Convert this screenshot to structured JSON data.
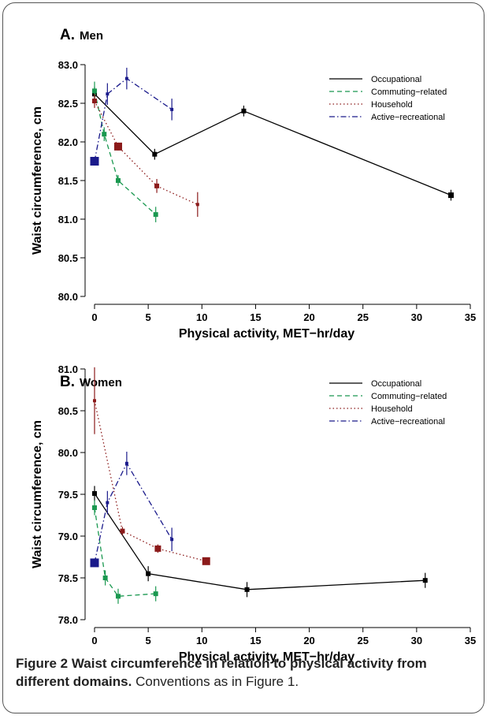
{
  "caption": {
    "title": "Figure 2 Waist circumference in relation to physical activity from different domains.",
    "text": "Conventions as in Figure 1."
  },
  "chart_data": [
    {
      "type": "line",
      "panel_letter": "A.",
      "title": "Men",
      "xlabel": "Physical activity, MET−hr/day",
      "ylabel": "Waist circumference, cm",
      "xlim": [
        0,
        35
      ],
      "ylim": [
        80.0,
        83.0
      ],
      "xticks": [
        0,
        5,
        10,
        15,
        20,
        25,
        30,
        35
      ],
      "yticks": [
        "80.0",
        "80.5",
        "81.0",
        "81.5",
        "82.0",
        "82.5",
        "83.0"
      ],
      "grid": false,
      "legend_position": "top-right",
      "series": [
        {
          "name": "Occupational",
          "color": "#000000",
          "dash": "solid",
          "x": [
            0,
            5.6,
            13.9,
            33.2
          ],
          "y": [
            82.62,
            81.84,
            82.4,
            81.31
          ],
          "err": [
            0.09,
            0.07,
            0.07,
            0.07
          ],
          "size": [
            6,
            6,
            6,
            7
          ]
        },
        {
          "name": "Commuting−related",
          "color": "#1a9850",
          "dash": "dashed",
          "x": [
            0,
            0.9,
            2.2,
            5.7
          ],
          "y": [
            82.66,
            82.1,
            81.5,
            81.06
          ],
          "err": [
            0.12,
            0.09,
            0.07,
            0.1
          ],
          "size": [
            6,
            6,
            6,
            6
          ]
        },
        {
          "name": "Household",
          "color": "#8b1a1a",
          "dash": "dotted",
          "x": [
            0,
            2.2,
            5.8,
            9.6
          ],
          "y": [
            82.53,
            81.94,
            81.43,
            81.19
          ],
          "err": [
            0.09,
            0.05,
            0.09,
            0.16
          ],
          "size": [
            6,
            10,
            6,
            4
          ]
        },
        {
          "name": "Active−recreational",
          "color": "#1a1a8b",
          "dash": "dashdot",
          "x": [
            0,
            1.2,
            3.0,
            7.2
          ],
          "y": [
            81.75,
            82.62,
            82.82,
            82.42
          ],
          "err": [
            0.04,
            0.14,
            0.14,
            0.14
          ],
          "size": [
            11,
            4,
            4,
            4
          ]
        }
      ]
    },
    {
      "type": "line",
      "panel_letter": "B.",
      "title": "Women",
      "xlabel": "Physical activity, MET−hr/day",
      "ylabel": "Waist circumference, cm",
      "xlim": [
        0,
        35
      ],
      "ylim": [
        78.0,
        81.0
      ],
      "xticks": [
        0,
        5,
        10,
        15,
        20,
        25,
        30,
        35
      ],
      "yticks": [
        "78.0",
        "78.5",
        "79.0",
        "79.5",
        "80.0",
        "80.5",
        "81.0"
      ],
      "grid": false,
      "legend_position": "top-right",
      "series": [
        {
          "name": "Occupational",
          "color": "#000000",
          "dash": "solid",
          "x": [
            0,
            5.0,
            14.2,
            30.8
          ],
          "y": [
            79.51,
            78.55,
            78.36,
            78.47
          ],
          "err": [
            0.09,
            0.09,
            0.09,
            0.09
          ],
          "size": [
            6,
            6,
            6,
            6
          ]
        },
        {
          "name": "Commuting−related",
          "color": "#1a9850",
          "dash": "dashed",
          "x": [
            0,
            1.0,
            2.2,
            5.7
          ],
          "y": [
            79.34,
            78.5,
            78.28,
            78.31
          ],
          "err": [
            0.09,
            0.09,
            0.09,
            0.09
          ],
          "size": [
            6,
            6,
            6,
            6
          ]
        },
        {
          "name": "Household",
          "color": "#8b1a1a",
          "dash": "dotted",
          "x": [
            0,
            2.6,
            5.9,
            10.4
          ],
          "y": [
            80.62,
            79.06,
            78.85,
            78.7
          ],
          "err": [
            0.4,
            0.05,
            0.05,
            0.04
          ],
          "size": [
            4,
            6,
            8,
            10
          ]
        },
        {
          "name": "Active−recreational",
          "color": "#1a1a8b",
          "dash": "dashdot",
          "x": [
            0,
            1.2,
            3.0,
            7.2
          ],
          "y": [
            78.68,
            79.4,
            79.87,
            78.96
          ],
          "err": [
            0.04,
            0.14,
            0.14,
            0.14
          ],
          "size": [
            11,
            4,
            4,
            4
          ]
        }
      ]
    }
  ]
}
